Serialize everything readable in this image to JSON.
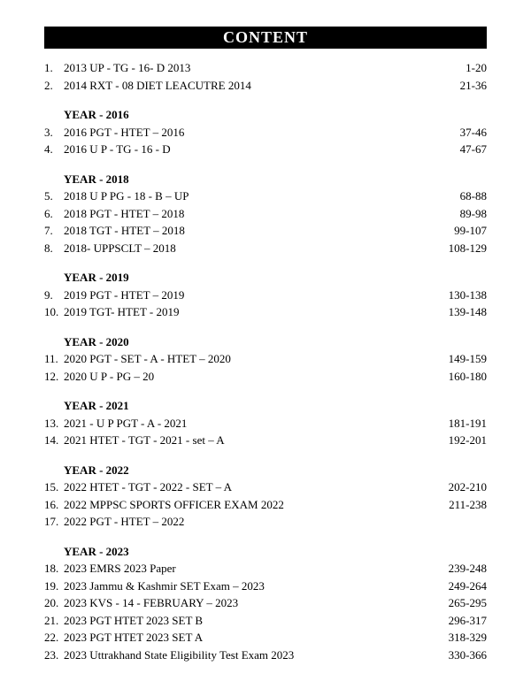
{
  "title": "CONTENT",
  "entries": [
    {
      "num": "1.",
      "text": "2013 UP - TG - 16- D 2013",
      "pages": "1-20"
    },
    {
      "num": "2.",
      "text": "2014 RXT - 08 DIET LEACUTRE 2014",
      "pages": "21-36"
    },
    {
      "section": "YEAR - 2016"
    },
    {
      "num": "3.",
      "text": "2016 PGT - HTET – 2016",
      "pages": "37-46"
    },
    {
      "num": "4.",
      "text": "2016 U P - TG - 16 - D",
      "pages": "47-67"
    },
    {
      "section": "YEAR - 2018"
    },
    {
      "num": "5.",
      "text": "2018 U P PG - 18 - B – UP",
      "pages": "68-88"
    },
    {
      "num": "6.",
      "text": "2018 PGT - HTET – 2018",
      "pages": "89-98"
    },
    {
      "num": "7.",
      "text": "2018 TGT - HTET – 2018",
      "pages": "99-107"
    },
    {
      "num": "8.",
      "text": "2018- UPPSCLT – 2018",
      "pages": "108-129"
    },
    {
      "section": "YEAR - 2019"
    },
    {
      "num": "9.",
      "text": "2019 PGT - HTET – 2019",
      "pages": "130-138"
    },
    {
      "num": "10.",
      "text": "2019 TGT- HTET -  2019",
      "pages": "139-148"
    },
    {
      "section": "YEAR - 2020"
    },
    {
      "num": "11.",
      "text": "2020 PGT - SET - A -  HTET – 2020",
      "pages": "149-159"
    },
    {
      "num": "12.",
      "text": "2020 U P - PG – 20",
      "pages": "160-180"
    },
    {
      "section": "YEAR - 2021"
    },
    {
      "num": "13.",
      "text": "2021 - U P PGT - A - 2021",
      "pages": "181-191"
    },
    {
      "num": "14.",
      "text": "2021 HTET - TGT  - 2021 - set – A",
      "pages": "192-201"
    },
    {
      "section": "YEAR - 2022"
    },
    {
      "num": "15.",
      "text": "2022 HTET - TGT - 2022 - SET – A",
      "pages": "202-210"
    },
    {
      "num": "16.",
      "text": "2022 MPPSC SPORTS OFFICER EXAM 2022",
      "pages": "211-238"
    },
    {
      "num": "17.",
      "text": "2022 PGT - HTET – 2022",
      "pages": ""
    },
    {
      "section": "YEAR - 2023"
    },
    {
      "num": "18.",
      "text": "2023 EMRS 2023 Paper",
      "pages": "239-248"
    },
    {
      "num": "19.",
      "text": "2023 Jammu & Kashmir SET Exam – 2023",
      "pages": "249-264"
    },
    {
      "num": "20.",
      "text": "2023 KVS - 14 - FEBRUARY – 2023",
      "pages": "265-295"
    },
    {
      "num": "21.",
      "text": "2023 PGT HTET 2023 SET B",
      "pages": "296-317"
    },
    {
      "num": "22.",
      "text": "2023 PGT HTET 2023 SET A",
      "pages": "318-329"
    },
    {
      "num": "23.",
      "text": "2023 Uttrakhand State Eligibility Test Exam 2023",
      "pages": "330-366"
    }
  ]
}
